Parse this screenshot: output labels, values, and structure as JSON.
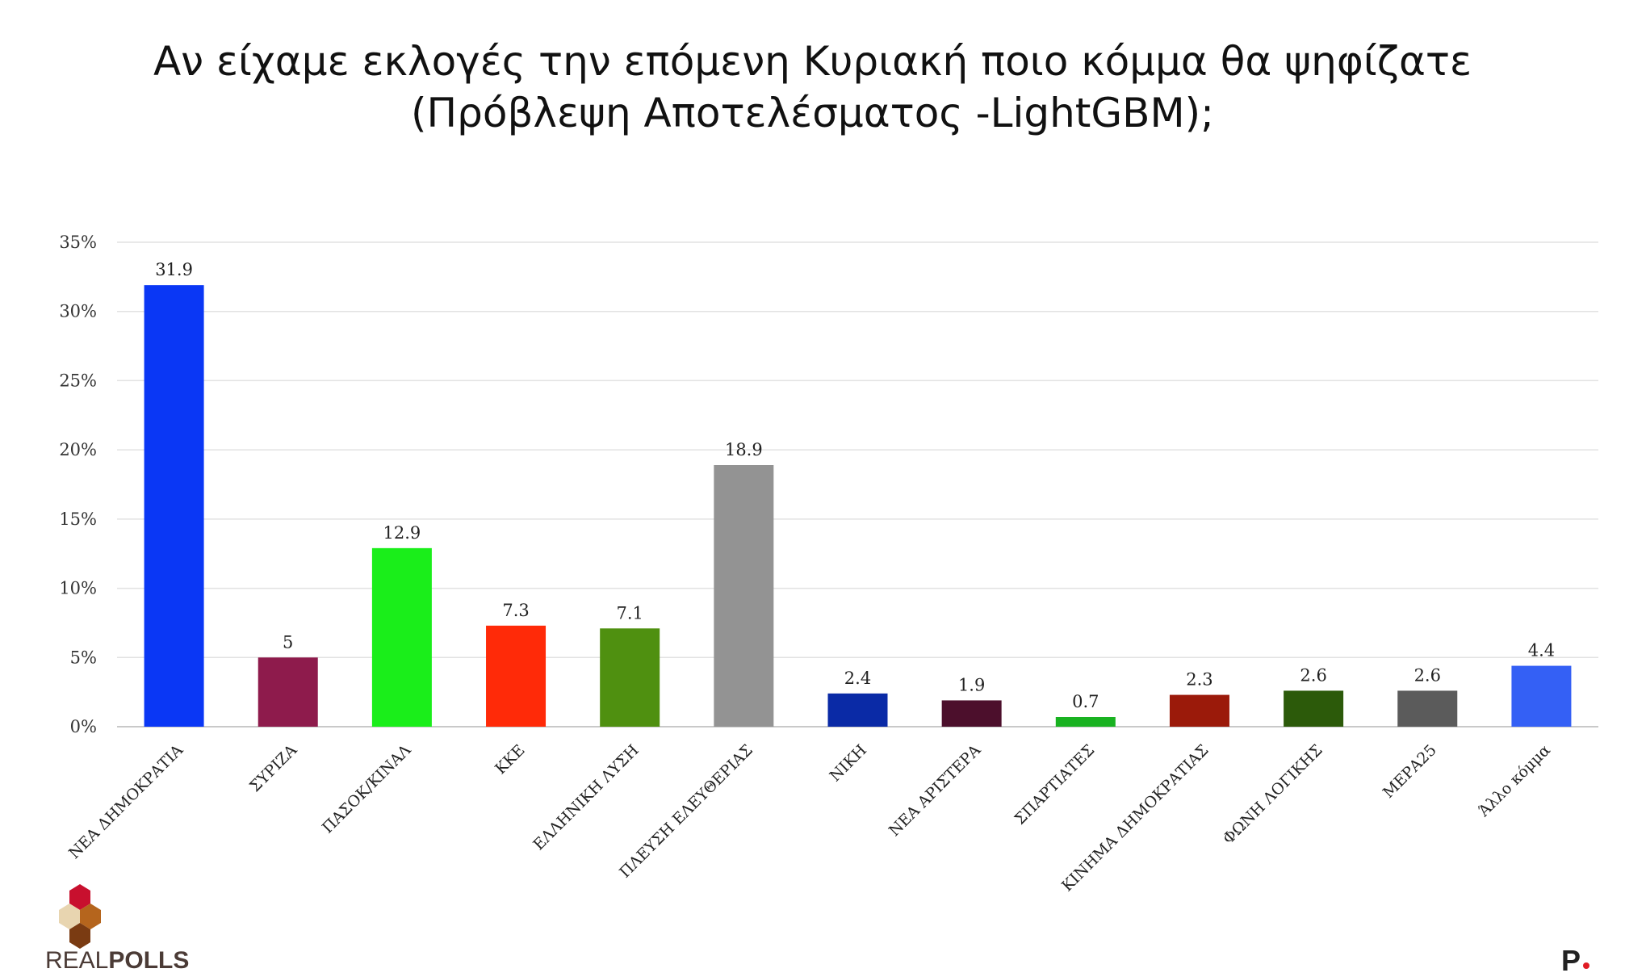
{
  "chart_data": {
    "type": "bar",
    "title": "Αν είχαμε εκλογές την επόμενη Κυριακή ποιο κόμμα θα ψηφίζατε",
    "subtitle": "(Πρόβλεψη Αποτελέσματος -LightGBM);",
    "categories": [
      "ΝΕΑ ΔΗΜΟΚΡΑΤΙΑ",
      "ΣΥΡΙΖΑ",
      "ΠΑΣΟΚ/ΚΙΝΑΛ",
      "ΚΚΕ",
      "ΕΛΛΗΝΙΚΗ ΛΥΣΗ",
      "ΠΛΕΥΣΗ ΕΛΕΥΘΕΡΙΑΣ",
      "ΝΙΚΗ",
      "ΝΕΑ ΑΡΙΣΤΕΡΑ",
      "ΣΠΑΡΤΙΑΤΕΣ",
      "ΚΙΝΗΜΑ ΔΗΜΟΚΡΑΤΙΑΣ",
      "ΦΩΝΗ ΛΟΓΙΚΗΣ",
      "ΜΕΡΑ25",
      "Άλλο κόμμα"
    ],
    "values": [
      31.9,
      5,
      12.9,
      7.3,
      7.1,
      18.9,
      2.4,
      1.9,
      0.7,
      2.3,
      2.6,
      2.6,
      4.4
    ],
    "value_labels": [
      "31.9",
      "5",
      "12.9",
      "7.3",
      "7.1",
      "18.9",
      "2.4",
      "1.9",
      "0.7",
      "2.3",
      "2.6",
      "2.6",
      "4.4"
    ],
    "colors": [
      "#0a37f5",
      "#8e1b4c",
      "#1aee1a",
      "#ff2a08",
      "#4f9010",
      "#939393",
      "#0a2aa6",
      "#4c0f2c",
      "#19b221",
      "#9b1a0a",
      "#2c5a0a",
      "#5b5b5b",
      "#3460f5"
    ],
    "yticks": [
      "0%",
      "5%",
      "10%",
      "15%",
      "20%",
      "25%",
      "30%",
      "35%"
    ],
    "ylim": [
      0,
      35
    ],
    "xlabel": "",
    "ylabel": "",
    "grid": true,
    "legend": "none"
  },
  "branding": {
    "logo_text_light": "REAL",
    "logo_text_bold": "POLLS",
    "corner_mark": "P"
  }
}
